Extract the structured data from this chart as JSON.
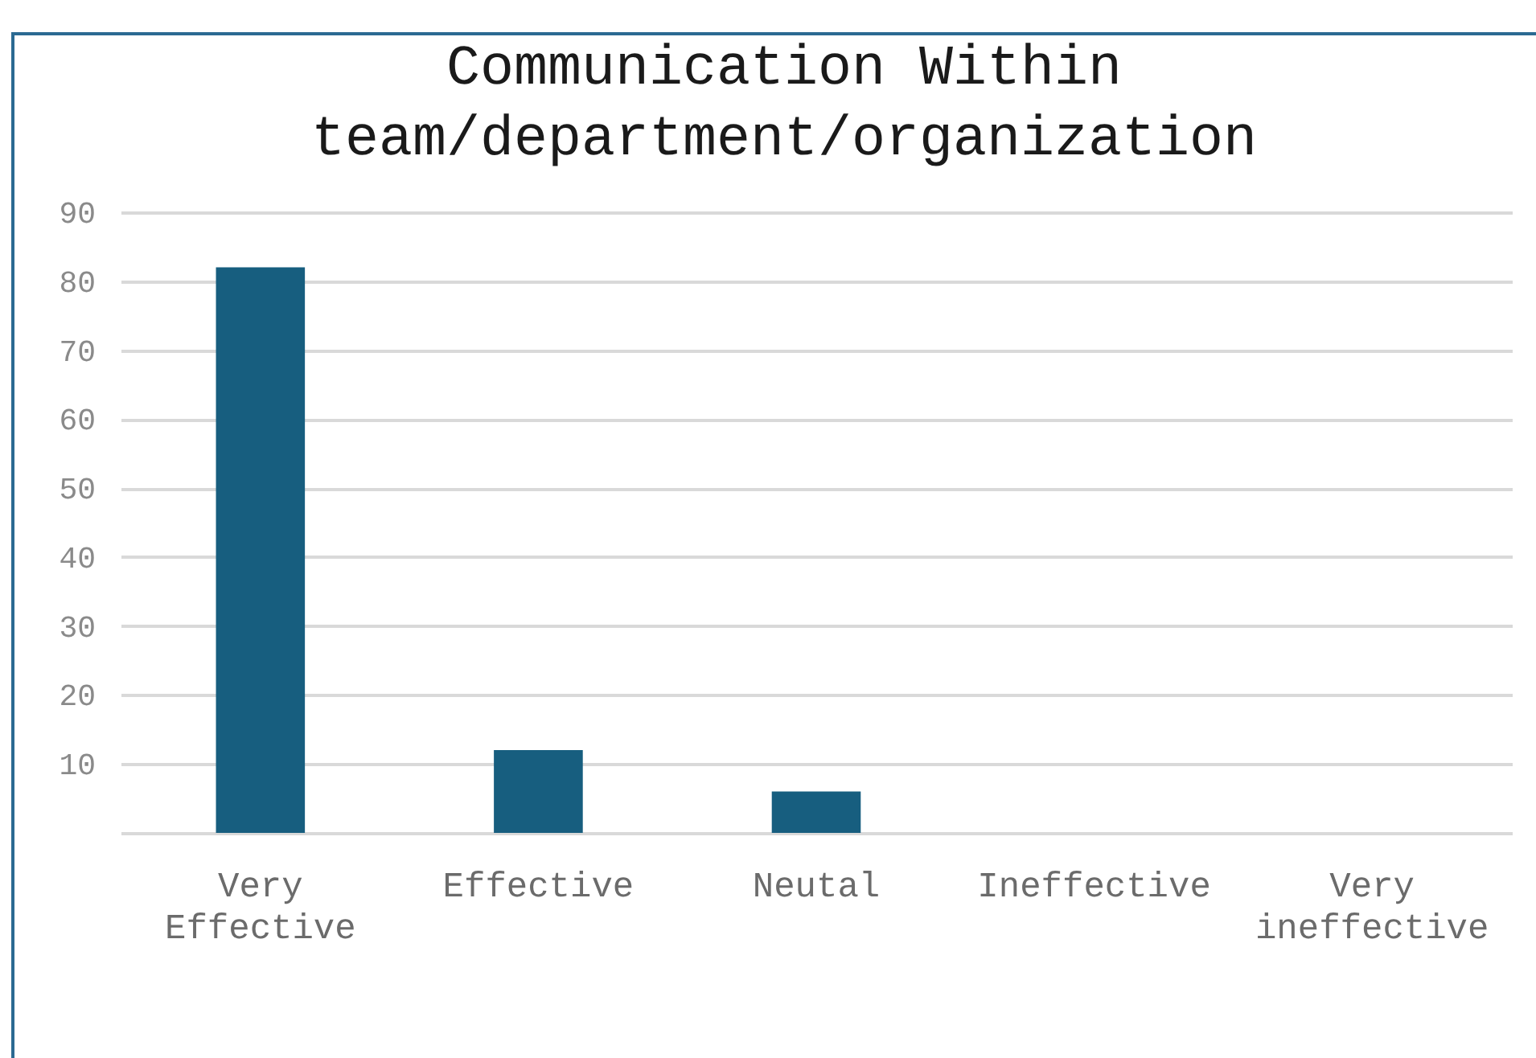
{
  "chart_data": {
    "type": "bar",
    "title": "Communication Within team/department/organization",
    "categories": [
      "Very Effective",
      "Effective",
      "Neutal",
      "Ineffective",
      "Very ineffective"
    ],
    "values": [
      82,
      12,
      6,
      0,
      0
    ],
    "color": "#175e7f",
    "ylim": [
      0,
      90
    ],
    "yticks": [
      {
        "value": 0,
        "label": null
      },
      10,
      20,
      30,
      40,
      50,
      60,
      70,
      80,
      90
    ],
    "grid": "y"
  }
}
